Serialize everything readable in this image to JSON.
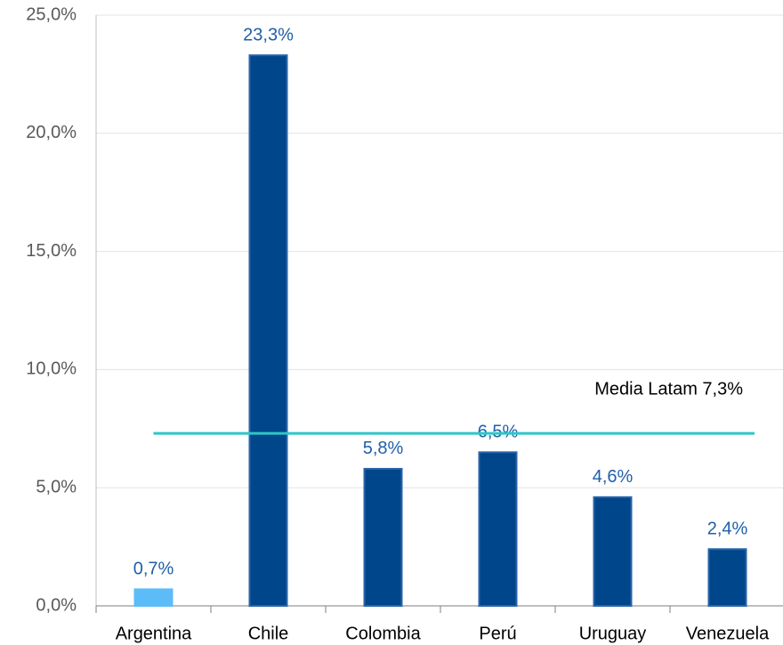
{
  "chart_data": {
    "type": "bar",
    "categories": [
      "Argentina",
      "Chile",
      "Colombia",
      "Perú",
      "Uruguay",
      "Venezuela"
    ],
    "values": [
      0.7,
      23.3,
      5.8,
      6.5,
      4.6,
      2.4
    ],
    "value_labels": [
      "0,7%",
      "23,3%",
      "5,8%",
      "6,5%",
      "4,6%",
      "2,4%"
    ],
    "colors": [
      "#5bbcf8",
      "#00468b",
      "#00468b",
      "#00468b",
      "#00468b",
      "#00468b"
    ],
    "ylim": [
      0,
      25
    ],
    "yticks": [
      {
        "value": 0,
        "label": "0,0%"
      },
      {
        "value": 5,
        "label": "5,0%"
      },
      {
        "value": 10,
        "label": "10,0%"
      },
      {
        "value": 15,
        "label": "15,0%"
      },
      {
        "value": 20,
        "label": "20,0%"
      },
      {
        "value": 25,
        "label": "25,0%"
      }
    ],
    "grid": true,
    "reference_line": {
      "value": 7.3,
      "label": "Media Latam 7,3%",
      "color": "#2ec6c8"
    }
  }
}
